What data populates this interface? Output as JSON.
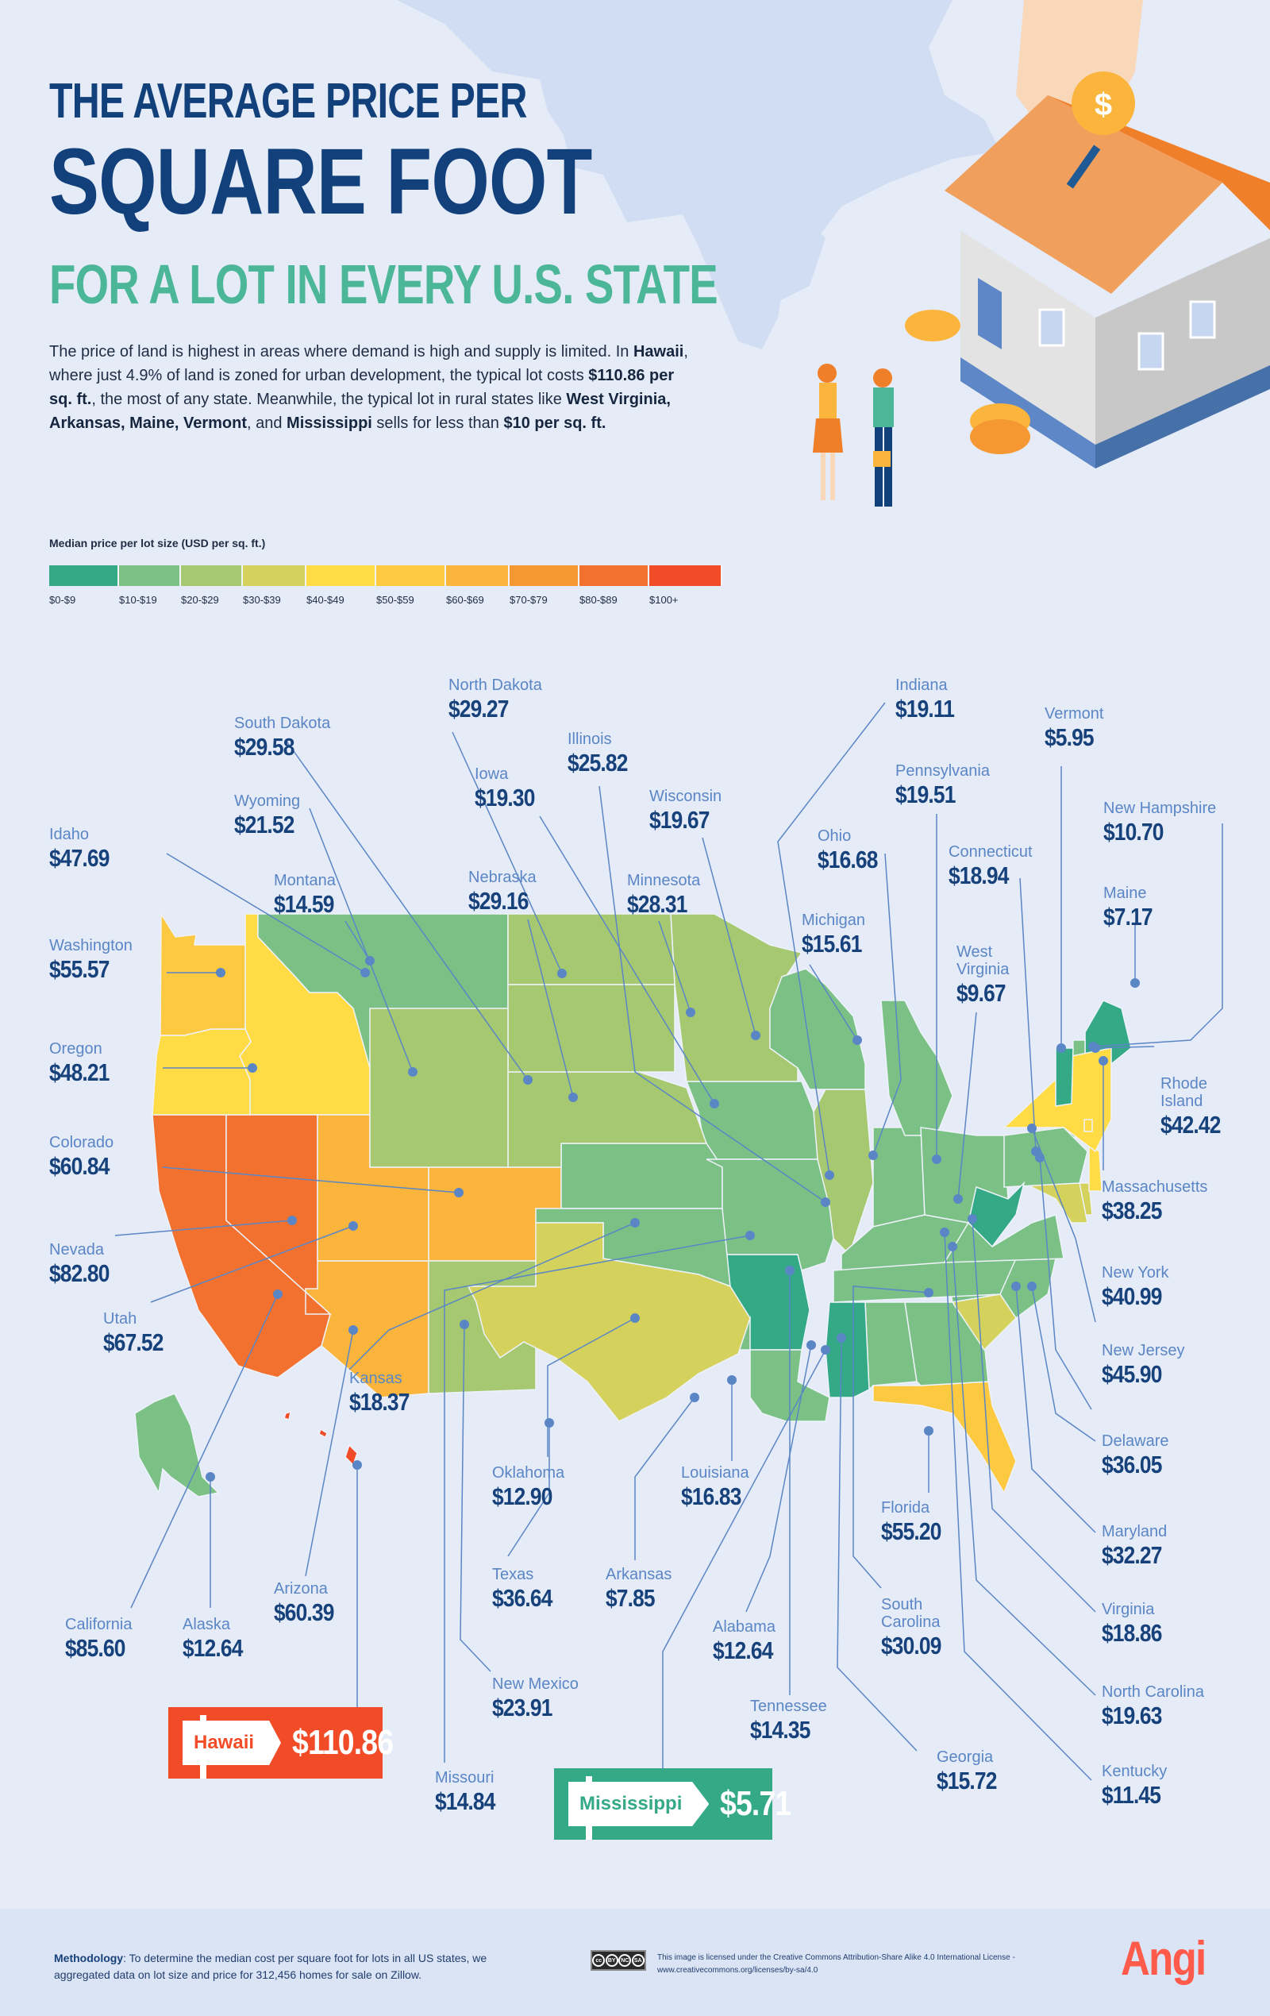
{
  "header": {
    "title_line1": "THE AVERAGE PRICE PER",
    "title_line2": "SQUARE FOOT",
    "title_line3": "FOR A LOT IN EVERY U.S. STATE"
  },
  "intro": {
    "s1": "The price of land is highest in areas where demand is high and supply is limited.",
    "s2a": "In ",
    "s2b": "Hawaii",
    "s2c": ", where just 4.9% of land is zoned for urban development, the typical lot costs ",
    "s2d": "$110.86 per sq. ft.",
    "s2e": ", the most of any state. Meanwhile, the typical lot in rural states like ",
    "s2f": "West Virginia, Arkansas, Maine, Vermont",
    "s2g": ", and ",
    "s2h": "Mississippi",
    "s2i": " sells for less than ",
    "s2j": "$10 per sq. ft."
  },
  "legend": {
    "title": "Median price per lot size (USD per sq. ft.)",
    "bins": [
      {
        "label": "$0-$9",
        "color": "#33a986"
      },
      {
        "label": "$10-$19",
        "color": "#7bc186"
      },
      {
        "label": "$20-$29",
        "color": "#a5c870"
      },
      {
        "label": "$30-$39",
        "color": "#d4d25c"
      },
      {
        "label": "$40-$49",
        "color": "#ffdc45"
      },
      {
        "label": "$50-$59",
        "color": "#fdc940"
      },
      {
        "label": "$60-$69",
        "color": "#fbb53d"
      },
      {
        "label": "$70-$79",
        "color": "#f59833"
      },
      {
        "label": "$80-$89",
        "color": "#f2712f"
      },
      {
        "label": "$100+",
        "color": "#f24b27"
      }
    ]
  },
  "chart_data": {
    "type": "choropleth",
    "title": "The Average Price Per Square Foot for a Lot in Every U.S. State",
    "unit": "USD per sq. ft.",
    "states": [
      {
        "name": "Alabama",
        "value": "$12.64",
        "v": 12.64
      },
      {
        "name": "Alaska",
        "value": "$12.64",
        "v": 12.64
      },
      {
        "name": "Arizona",
        "value": "$60.39",
        "v": 60.39
      },
      {
        "name": "Arkansas",
        "value": "$7.85",
        "v": 7.85
      },
      {
        "name": "California",
        "value": "$85.60",
        "v": 85.6
      },
      {
        "name": "Colorado",
        "value": "$60.84",
        "v": 60.84
      },
      {
        "name": "Connecticut",
        "value": "$18.94",
        "v": 18.94
      },
      {
        "name": "Delaware",
        "value": "$36.05",
        "v": 36.05
      },
      {
        "name": "Florida",
        "value": "$55.20",
        "v": 55.2
      },
      {
        "name": "Georgia",
        "value": "$15.72",
        "v": 15.72
      },
      {
        "name": "Hawaii",
        "value": "$110.86",
        "v": 110.86
      },
      {
        "name": "Idaho",
        "value": "$47.69",
        "v": 47.69
      },
      {
        "name": "Illinois",
        "value": "$25.82",
        "v": 25.82
      },
      {
        "name": "Indiana",
        "value": "$19.11",
        "v": 19.11
      },
      {
        "name": "Iowa",
        "value": "$19.30",
        "v": 19.3
      },
      {
        "name": "Kansas",
        "value": "$18.37",
        "v": 18.37
      },
      {
        "name": "Kentucky",
        "value": "$11.45",
        "v": 11.45
      },
      {
        "name": "Louisiana",
        "value": "$16.83",
        "v": 16.83
      },
      {
        "name": "Maine",
        "value": "$7.17",
        "v": 7.17
      },
      {
        "name": "Maryland",
        "value": "$32.27",
        "v": 32.27
      },
      {
        "name": "Massachusetts",
        "value": "$38.25",
        "v": 38.25
      },
      {
        "name": "Michigan",
        "value": "$15.61",
        "v": 15.61
      },
      {
        "name": "Minnesota",
        "value": "$28.31",
        "v": 28.31
      },
      {
        "name": "Mississippi",
        "value": "$5.71",
        "v": 5.71
      },
      {
        "name": "Missouri",
        "value": "$14.84",
        "v": 14.84
      },
      {
        "name": "Montana",
        "value": "$14.59",
        "v": 14.59
      },
      {
        "name": "Nebraska",
        "value": "$29.16",
        "v": 29.16
      },
      {
        "name": "Nevada",
        "value": "$82.80",
        "v": 82.8
      },
      {
        "name": "New Hampshire",
        "value": "$10.70",
        "v": 10.7
      },
      {
        "name": "New Jersey",
        "value": "$45.90",
        "v": 45.9
      },
      {
        "name": "New Mexico",
        "value": "$23.91",
        "v": 23.91
      },
      {
        "name": "New York",
        "value": "$40.99",
        "v": 40.99
      },
      {
        "name": "North Carolina",
        "value": "$19.63",
        "v": 19.63
      },
      {
        "name": "North Dakota",
        "value": "$29.27",
        "v": 29.27
      },
      {
        "name": "Ohio",
        "value": "$16.68",
        "v": 16.68
      },
      {
        "name": "Oklahoma",
        "value": "$12.90",
        "v": 12.9
      },
      {
        "name": "Oregon",
        "value": "$48.21",
        "v": 48.21
      },
      {
        "name": "Pennsylvania",
        "value": "$19.51",
        "v": 19.51
      },
      {
        "name": "Rhode Island",
        "value": "$42.42",
        "v": 42.42
      },
      {
        "name": "South Carolina",
        "value": "$30.09",
        "v": 30.09
      },
      {
        "name": "South Dakota",
        "value": "$29.58",
        "v": 29.58
      },
      {
        "name": "Tennessee",
        "value": "$14.35",
        "v": 14.35
      },
      {
        "name": "Texas",
        "value": "$36.64",
        "v": 36.64
      },
      {
        "name": "Utah",
        "value": "$67.52",
        "v": 67.52
      },
      {
        "name": "Vermont",
        "value": "$5.95",
        "v": 5.95
      },
      {
        "name": "Virginia",
        "value": "$18.86",
        "v": 18.86
      },
      {
        "name": "Washington",
        "value": "$55.57",
        "v": 55.57
      },
      {
        "name": "West Virginia",
        "value": "$9.67",
        "v": 9.67
      },
      {
        "name": "Wisconsin",
        "value": "$19.67",
        "v": 19.67
      },
      {
        "name": "Wyoming",
        "value": "$21.52",
        "v": 21.52
      }
    ]
  },
  "labels": {
    "rhode_island_line1": "Rhode",
    "rhode_island_line2": "Island",
    "west_virginia_line1": "West",
    "west_virginia_line2": "Virginia",
    "south_carolina_line1": "South",
    "south_carolina_line2": "Carolina"
  },
  "callouts": {
    "hawaii": {
      "name": "Hawaii",
      "price": "$110.86",
      "color": "#f24b27"
    },
    "mississippi": {
      "name": "Mississippi",
      "price": "$5.71",
      "color": "#33a986"
    }
  },
  "footer": {
    "methodology_label": "Methodology",
    "methodology_text": ": To determine the median cost per square foot for lots in all US states, we aggregated data on lot size and price for 312,456 homes for sale on Zillow.",
    "license_text": "This image is licensed under the Creative Commons Attribution-Share Alike 4.0 International License - www.creativecommons.org/licenses/by-sa/4.0",
    "cc_badge": [
      "cc",
      "BY",
      "NC",
      "SA"
    ],
    "logo": "Angi"
  }
}
